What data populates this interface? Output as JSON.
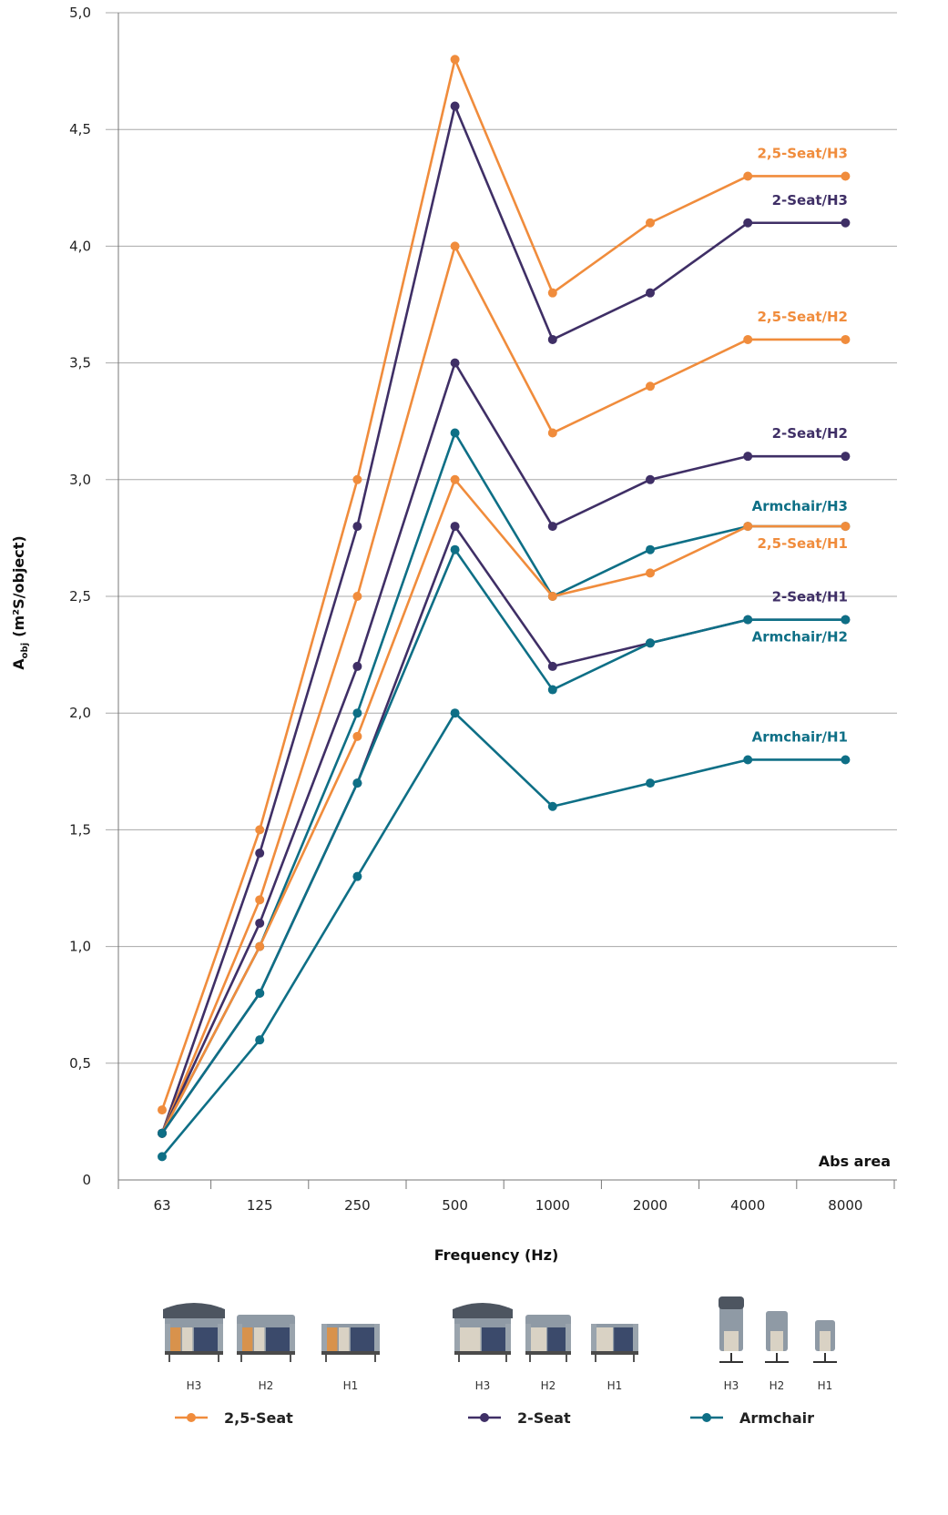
{
  "chart_data": {
    "type": "line",
    "xlabel": "Frequency (Hz)",
    "ylabel_main": "A",
    "ylabel_sub": "obj",
    "ylabel_rest": "(m²S/object)",
    "annotation": "Abs area",
    "categories": [
      "63",
      "125",
      "250",
      "500",
      "1000",
      "2000",
      "4000",
      "8000"
    ],
    "ylim": [
      0,
      5
    ],
    "yticks": [
      {
        "value": 0,
        "label": "0"
      },
      {
        "value": 0.5,
        "label": "0,5"
      },
      {
        "value": 1.0,
        "label": "1,0"
      },
      {
        "value": 1.5,
        "label": "1,5"
      },
      {
        "value": 2.0,
        "label": "2,0"
      },
      {
        "value": 2.5,
        "label": "2,5"
      },
      {
        "value": 3.0,
        "label": "3,0"
      },
      {
        "value": 3.5,
        "label": "3,5"
      },
      {
        "value": 4.0,
        "label": "4,0"
      },
      {
        "value": 4.5,
        "label": "4,5"
      },
      {
        "value": 5.0,
        "label": "5,0"
      }
    ],
    "grid": "horizontal",
    "series": [
      {
        "name": "2,5-Seat/H3",
        "group": "2,5-Seat",
        "color": "#f08c3c",
        "values": [
          0.3,
          1.5,
          3.0,
          4.8,
          3.8,
          4.1,
          4.3,
          4.3
        ]
      },
      {
        "name": "2-Seat/H3",
        "group": "2-Seat",
        "color": "#3f2f66",
        "values": [
          0.2,
          1.4,
          2.8,
          4.6,
          3.6,
          3.8,
          4.1,
          4.1
        ]
      },
      {
        "name": "2,5-Seat/H2",
        "group": "2,5-Seat",
        "color": "#f08c3c",
        "values": [
          0.2,
          1.2,
          2.5,
          4.0,
          3.2,
          3.4,
          3.6,
          3.6
        ]
      },
      {
        "name": "2-Seat/H2",
        "group": "2-Seat",
        "color": "#3f2f66",
        "values": [
          0.2,
          1.1,
          2.2,
          3.5,
          2.8,
          3.0,
          3.1,
          3.1
        ]
      },
      {
        "name": "Armchair/H3",
        "group": "Armchair",
        "color": "#0e6f86",
        "values": [
          0.2,
          1.0,
          2.0,
          3.2,
          2.5,
          2.7,
          2.8,
          2.8
        ]
      },
      {
        "name": "2,5-Seat/H1",
        "group": "2,5-Seat",
        "color": "#f08c3c",
        "values": [
          0.2,
          1.0,
          1.9,
          3.0,
          2.5,
          2.6,
          2.8,
          2.8
        ]
      },
      {
        "name": "2-Seat/H1",
        "group": "2-Seat",
        "color": "#3f2f66",
        "values": [
          0.2,
          0.8,
          1.7,
          2.8,
          2.2,
          2.3,
          2.4,
          2.4
        ]
      },
      {
        "name": "Armchair/H2",
        "group": "Armchair",
        "color": "#0e6f86",
        "values": [
          0.2,
          0.8,
          1.7,
          2.7,
          2.1,
          2.3,
          2.4,
          2.4
        ]
      },
      {
        "name": "Armchair/H1",
        "group": "Armchair",
        "color": "#0e6f86",
        "values": [
          0.1,
          0.6,
          1.3,
          2.0,
          1.6,
          1.7,
          1.8,
          1.8
        ]
      }
    ],
    "legend": [
      {
        "label": "2,5-Seat",
        "color": "#f08c3c",
        "sizes": [
          "H3",
          "H2",
          "H1"
        ],
        "kind": "sofa-wide"
      },
      {
        "label": "2-Seat",
        "color": "#3f2f66",
        "sizes": [
          "H3",
          "H2",
          "H1"
        ],
        "kind": "sofa"
      },
      {
        "label": "Armchair",
        "color": "#0e6f86",
        "sizes": [
          "H3",
          "H2",
          "H1"
        ],
        "kind": "armchair"
      }
    ]
  }
}
